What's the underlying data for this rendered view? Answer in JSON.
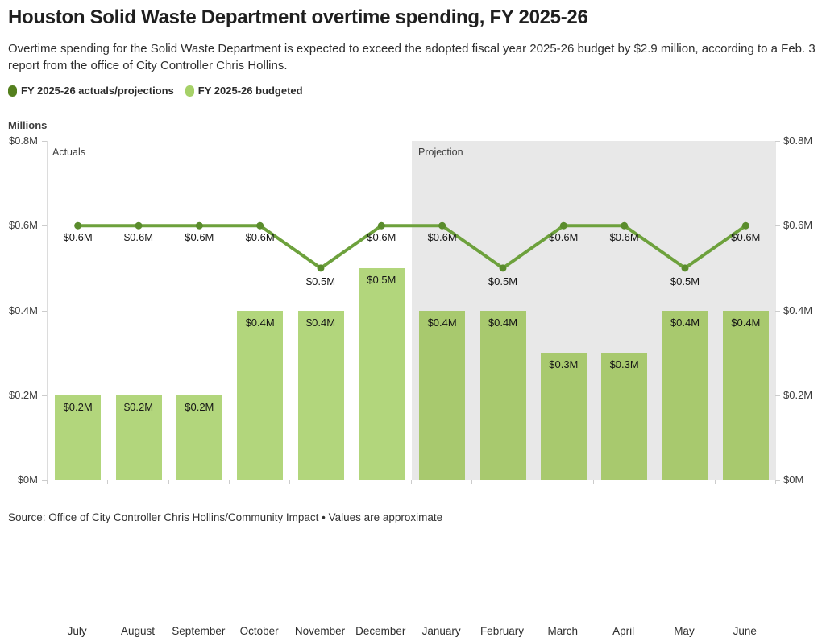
{
  "title": "Houston Solid Waste Department overtime spending, FY 2025-26",
  "subtitle": "Overtime spending for the Solid Waste Department is expected to exceed the adopted fiscal year 2025-26 budget by $2.9 million, according to a Feb. 3 report from the office of City Controller Chris Hollins.",
  "legend": {
    "items": [
      {
        "label": "FY 2025-26 actuals/projections",
        "color": "#54801e"
      },
      {
        "label": "FY 2025-26 budgeted",
        "color": "#a6d168"
      }
    ]
  },
  "axis_title": "Millions",
  "annotations": {
    "actuals": "Actuals",
    "projection": "Projection"
  },
  "source": "Source: Office of City Controller Chris Hollins/Community Impact • Values are approximate",
  "colors": {
    "line": "#6da13c",
    "marker": "#5a8c2c",
    "bar_actual": "#b2d67c",
    "bar_projection": "#a8c96e",
    "projection_bg": "#e8e8e8",
    "axis_tick": "#cccccc"
  },
  "chart_data": {
    "type": "bar",
    "title": "Houston Solid Waste Department overtime spending, FY 2025-26",
    "categories": [
      "July",
      "August",
      "September",
      "October",
      "November",
      "December",
      "January",
      "February",
      "March",
      "April",
      "May",
      "June"
    ],
    "series": [
      {
        "name": "FY 2025-26 actuals/projections",
        "type": "line",
        "values": [
          0.6,
          0.6,
          0.6,
          0.6,
          0.5,
          0.6,
          0.6,
          0.5,
          0.6,
          0.6,
          0.5,
          0.6
        ],
        "labels": [
          "$0.6M",
          "$0.6M",
          "$0.6M",
          "$0.6M",
          "$0.5M",
          "$0.6M",
          "$0.6M",
          "$0.5M",
          "$0.6M",
          "$0.6M",
          "$0.5M",
          "$0.6M"
        ]
      },
      {
        "name": "FY 2025-26 budgeted",
        "type": "bar",
        "values": [
          0.2,
          0.2,
          0.2,
          0.4,
          0.4,
          0.5,
          0.4,
          0.4,
          0.3,
          0.3,
          0.4,
          0.4
        ],
        "labels": [
          "$0.2M",
          "$0.2M",
          "$0.2M",
          "$0.4M",
          "$0.4M",
          "$0.5M",
          "$0.4M",
          "$0.4M",
          "$0.3M",
          "$0.3M",
          "$0.4M",
          "$0.4M"
        ]
      }
    ],
    "xlabel": "",
    "ylabel": "Millions",
    "ylim": [
      0,
      0.8
    ],
    "yticks": [
      {
        "value": 0.8,
        "label": "$0.8M"
      },
      {
        "value": 0.6,
        "label": "$0.6M"
      },
      {
        "value": 0.4,
        "label": "$0.4M"
      },
      {
        "value": 0.2,
        "label": "$0.2M"
      },
      {
        "value": 0.0,
        "label": "$0M"
      }
    ],
    "y_axis_sides": [
      "left",
      "right"
    ],
    "grid": false,
    "legend_position": "top-left",
    "projection_start_index": 6,
    "regions": [
      {
        "label": "Actuals",
        "categories": [
          "July",
          "August",
          "September",
          "October",
          "November",
          "December"
        ],
        "background": "#ffffff"
      },
      {
        "label": "Projection",
        "categories": [
          "January",
          "February",
          "March",
          "April",
          "May",
          "June"
        ],
        "background": "#e8e8e8"
      }
    ]
  }
}
